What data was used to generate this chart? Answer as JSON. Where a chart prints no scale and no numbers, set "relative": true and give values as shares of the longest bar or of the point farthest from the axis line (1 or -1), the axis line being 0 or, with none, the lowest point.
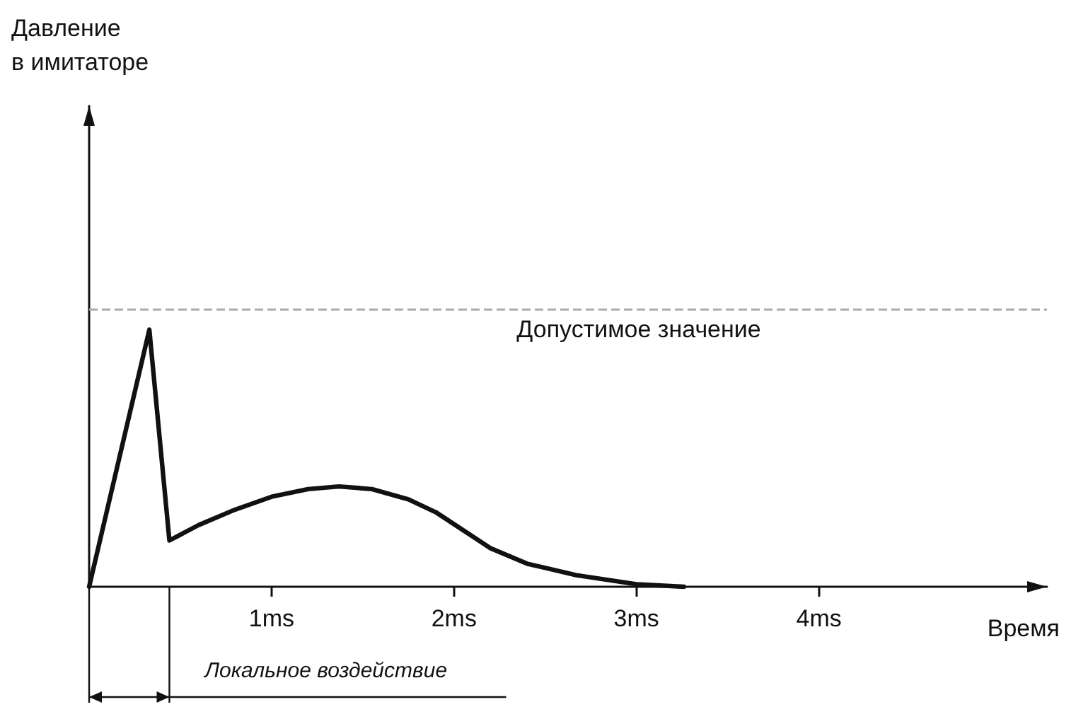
{
  "chart_data": {
    "type": "line",
    "relative": true,
    "xlabel": "Время",
    "ylabel": "Давление в имитаторе",
    "xlim": [
      0,
      5.25
    ],
    "ylim": [
      0,
      1.87
    ],
    "xticks": [
      {
        "value": 1,
        "label": "1ms"
      },
      {
        "value": 2,
        "label": "2ms"
      },
      {
        "value": 3,
        "label": "3ms"
      },
      {
        "value": 4,
        "label": "4ms"
      }
    ],
    "x": [
      0,
      0.33,
      0.44,
      0.6,
      0.8,
      1.0,
      1.2,
      1.37,
      1.55,
      1.75,
      1.9,
      2.05,
      2.2,
      2.4,
      2.67,
      3.0,
      3.26
    ],
    "series": [
      {
        "color": "#111111",
        "values": [
          0,
          1,
          0.18,
          0.24,
          0.3,
          0.35,
          0.38,
          0.39,
          0.38,
          0.34,
          0.29,
          0.22,
          0.15,
          0.09,
          0.045,
          0.01,
          0
        ]
      }
    ],
    "ref_lines": [
      {
        "axis": "y",
        "value": 1.08,
        "label": "Допустимое значение",
        "color": "#aaaaaa",
        "line_style": "dashed"
      }
    ],
    "annotations": [
      "Локальное воздействие"
    ],
    "marker": "none",
    "line_style": "solid"
  }
}
